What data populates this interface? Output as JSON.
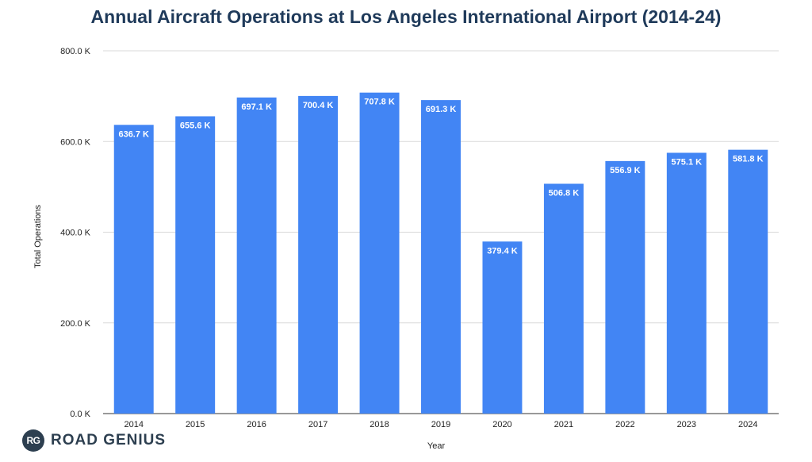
{
  "title": "Annual Aircraft Operations at Los Angeles International Airport (2014-24)",
  "brand": {
    "badge": "RG",
    "name": "ROAD GENIUS"
  },
  "colors": {
    "bar": "#4285f4",
    "title": "#1f3a5a",
    "grid": "#d9d9d9",
    "brand": "#2d3f50"
  },
  "chart_data": {
    "type": "bar",
    "title": "Annual Aircraft Operations at Los Angeles International Airport (2014-24)",
    "xlabel": "Year",
    "ylabel": "Total Operations",
    "categories": [
      "2014",
      "2015",
      "2016",
      "2017",
      "2018",
      "2019",
      "2020",
      "2021",
      "2022",
      "2023",
      "2024"
    ],
    "values": [
      636.7,
      655.6,
      697.1,
      700.4,
      707.8,
      691.3,
      379.4,
      506.8,
      556.9,
      575.1,
      581.8
    ],
    "value_labels": [
      "636.7 K",
      "655.6 K",
      "697.1 K",
      "700.4 K",
      "707.8 K",
      "691.3 K",
      "379.4 K",
      "506.8 K",
      "556.9 K",
      "575.1 K",
      "581.8 K"
    ],
    "value_unit": "thousands",
    "ylim": [
      0,
      800
    ],
    "yticks": [
      0,
      200,
      400,
      600,
      800
    ],
    "ytick_labels": [
      "0.0 K",
      "200.0 K",
      "400.0 K",
      "600.0 K",
      "800.0 K"
    ],
    "grid": true,
    "legend": "none"
  }
}
